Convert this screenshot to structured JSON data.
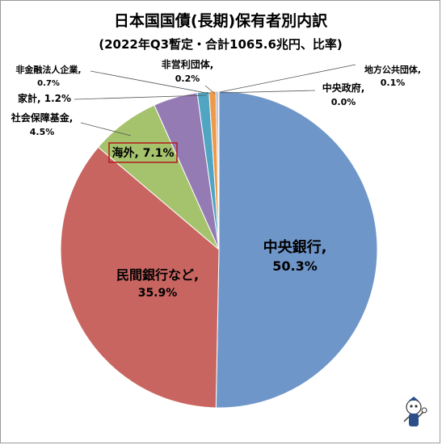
{
  "chart_data": {
    "type": "pie",
    "title": "日本国国債(長期)保有者別内訳",
    "subtitle": "(2022年Q3暫定・合計1065.6兆円、比率)",
    "slices": [
      {
        "name": "中央銀行,",
        "label": "中央銀行,",
        "value_label": "50.3%",
        "value": 50.3,
        "color": "#6f96c9"
      },
      {
        "name": "民間銀行など,",
        "label": "民間銀行など,",
        "value_label": "35.9%",
        "value": 35.9,
        "color": "#c96561"
      },
      {
        "name": "海外",
        "label": "海外, 7.1%",
        "value_label": "",
        "value": 7.1,
        "color": "#a5c26c",
        "highlight": true
      },
      {
        "name": "社会保障基金,",
        "label": "社会保障基金,",
        "value_label": "4.5%",
        "value": 4.5,
        "color": "#957bb3"
      },
      {
        "name": "家計",
        "label": "家計, 1.2%",
        "value_label": "",
        "value": 1.2,
        "color": "#4fa5c2"
      },
      {
        "name": "非金融法人企業,",
        "label": "非金融法人企業,",
        "value_label": "0.7%",
        "value": 0.7,
        "color": "#ef9a4a"
      },
      {
        "name": "非営利団体,",
        "label": "非営利団体,",
        "value_label": "0.2%",
        "value": 0.2,
        "color": "#7f9bc4"
      },
      {
        "name": "地方公共団体,",
        "label": "地方公共団体,",
        "value_label": "0.1%",
        "value": 0.1,
        "color": "#c98883"
      },
      {
        "name": "中央政府,",
        "label": "中央政府,",
        "value_label": "0.0%",
        "value": 0.0,
        "color": "#b7cc8c"
      }
    ],
    "colors": {
      "highlight_box": "#b22222",
      "leader_line": "#555555",
      "slice_border": "#ffffff"
    }
  }
}
